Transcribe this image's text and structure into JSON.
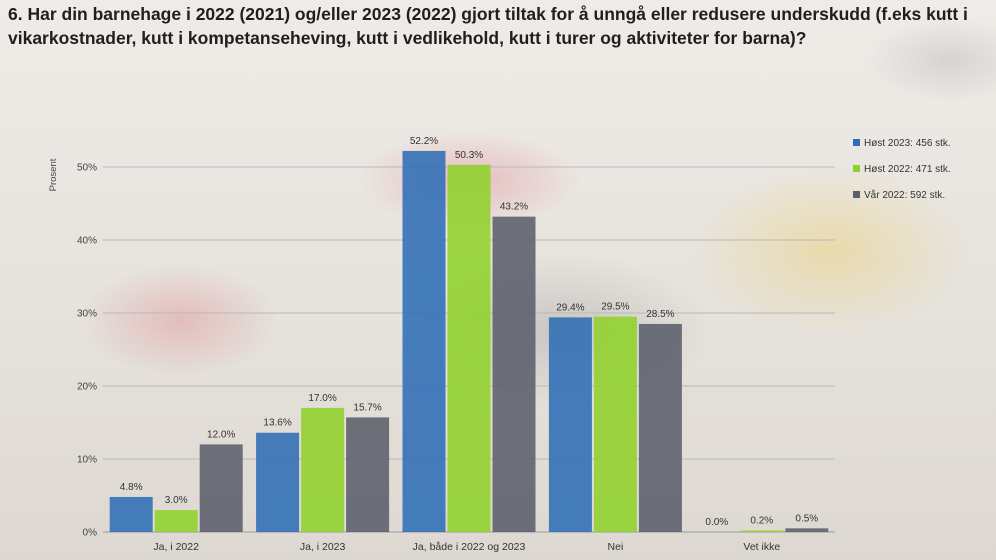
{
  "title": "6. Har din barnehage i 2022 (2021) og/eller 2023 (2022) gjort tiltak for å unngå eller redusere underskudd (f.eks kutt i vikarkostnader, kutt i kompetanseheving, kutt i vedlikehold, kutt i turer og aktiviteter for barna)?",
  "chart_data": {
    "type": "bar",
    "ylabel": "Prosent",
    "ylim": [
      0,
      55
    ],
    "yticks": [
      "0%",
      "10%",
      "20%",
      "30%",
      "40%",
      "50%"
    ],
    "ytick_values": [
      0,
      10,
      20,
      30,
      40,
      50
    ],
    "categories": [
      "Ja, i 2022",
      "Ja, i 2023",
      "Ja, både i 2022 og 2023",
      "Nei",
      "Vet ikke"
    ],
    "series": [
      {
        "name": "Høst 2023: 456 stk.",
        "color": "#2f6db5",
        "values": [
          4.8,
          13.6,
          52.2,
          29.4,
          0.0
        ],
        "labels": [
          "4.8%",
          "13.6%",
          "52.2%",
          "29.4%",
          "0.0%"
        ]
      },
      {
        "name": "Høst 2022: 471 stk.",
        "color": "#8fd12a",
        "values": [
          3.0,
          17.0,
          50.3,
          29.5,
          0.2
        ],
        "labels": [
          "3.0%",
          "17.0%",
          "50.3%",
          "29.5%",
          "0.2%"
        ]
      },
      {
        "name": "Vår 2022: 592 stk.",
        "color": "#5b5f6b",
        "values": [
          12.0,
          15.7,
          43.2,
          28.5,
          0.5
        ],
        "labels": [
          "12.0%",
          "15.7%",
          "43.2%",
          "28.5%",
          "0.5%"
        ]
      }
    ],
    "legend": "top-right"
  }
}
